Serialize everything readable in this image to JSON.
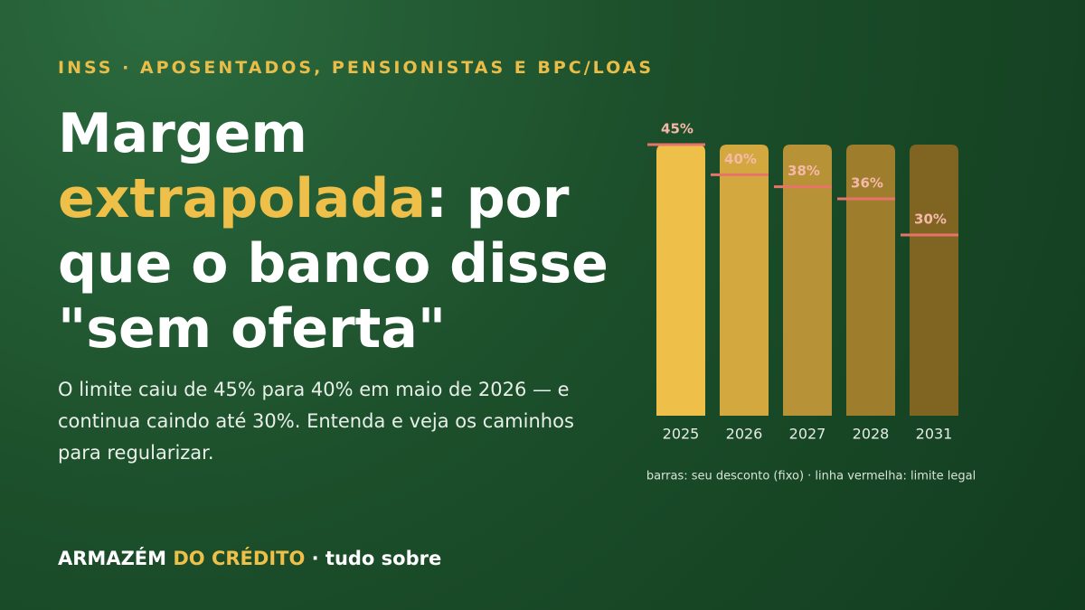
{
  "kicker": "INSS · APOSENTADOS, PENSIONISTAS E BPC/LOAS",
  "headline": {
    "parts": [
      "Margem",
      "extrapolada",
      ": por que o banco disse \"sem oferta\""
    ]
  },
  "subtitle": "O limite caiu de 45% para 40% em maio de 2026 — e continua caindo até 30%. Entenda e veja os caminhos para regularizar.",
  "brand": {
    "parts": [
      "ARMAZÉM",
      "DO CRÉDITO",
      "· tudo sobre"
    ]
  },
  "chart_data": {
    "type": "bar",
    "categories": [
      "2025",
      "2026",
      "2027",
      "2028",
      "2031"
    ],
    "series": [
      {
        "colors": [
          "#eec04a",
          "#d2a83f",
          "#b89236",
          "#9e7d2d",
          "#7f6422"
        ],
        "values": [
          45,
          45,
          45,
          45,
          45
        ]
      },
      {
        "color": "#e8736a",
        "values": [
          45,
          40,
          38,
          36,
          30
        ],
        "value_labels": [
          "45%",
          "40%",
          "38%",
          "36%",
          "30%"
        ]
      }
    ],
    "ylim": [
      0,
      45
    ],
    "note": "barras: seu desconto (fixo) · linha vermelha: limite legal"
  }
}
